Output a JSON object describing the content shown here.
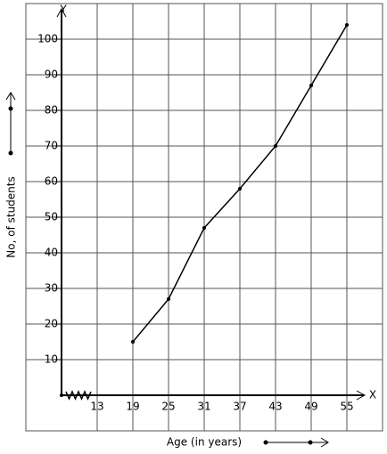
{
  "chart_data": {
    "type": "line",
    "x_label": "Age (in years)",
    "y_label": "No, of students",
    "x_axis_letter": "X",
    "y_axis_letter": "Y",
    "x": [
      19,
      25,
      31,
      37,
      43,
      49,
      55
    ],
    "series": [
      {
        "color": "#000000",
        "values": [
          15,
          27,
          47,
          58,
          70,
          87,
          104
        ]
      }
    ],
    "xlim": [
      1,
      61
    ],
    "xticks": [
      13,
      19,
      25,
      31,
      37,
      43,
      49,
      55
    ],
    "ylim": [
      -10,
      110
    ],
    "yticks": [
      10,
      20,
      30,
      40,
      50,
      60,
      70,
      80,
      90,
      100
    ],
    "grid": true
  }
}
